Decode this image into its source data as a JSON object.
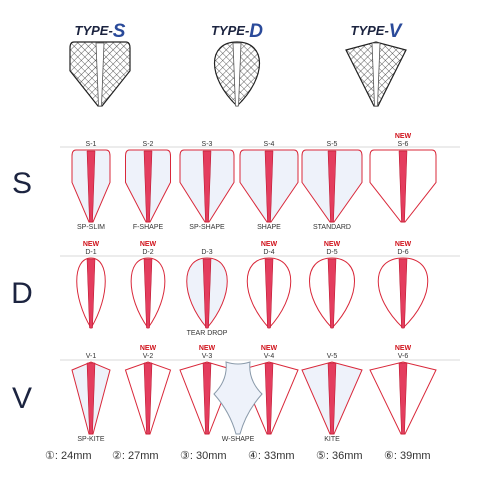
{
  "types": [
    {
      "prefix": "TYPE-",
      "letter": "S"
    },
    {
      "prefix": "TYPE-",
      "letter": "D"
    },
    {
      "prefix": "TYPE-",
      "letter": "V"
    }
  ],
  "rows": [
    {
      "letter": "S",
      "items": [
        {
          "code": "S-1",
          "name": "SP-SLIM"
        },
        {
          "code": "S-2",
          "name": "F-SHAPE"
        },
        {
          "code": "S-3",
          "name": "SP-SHAPE"
        },
        {
          "code": "S-4",
          "name": "SHAPE"
        },
        {
          "code": "S-5",
          "name": "STANDARD"
        },
        {
          "code": "S-6",
          "badge": "NEW"
        }
      ]
    },
    {
      "letter": "D",
      "items": [
        {
          "code": "D-1",
          "badge": "NEW"
        },
        {
          "code": "D-2",
          "badge": "NEW"
        },
        {
          "code": "D-3",
          "name": "TEAR DROP"
        },
        {
          "code": "D-4",
          "badge": "NEW"
        },
        {
          "code": "D-5",
          "badge": "NEW"
        },
        {
          "code": "D-6",
          "badge": "NEW"
        }
      ]
    },
    {
      "letter": "V",
      "items": [
        {
          "code": "V-1",
          "name": "SP-KITE"
        },
        {
          "code": "V-2",
          "badge": "NEW"
        },
        {
          "code": "V-3",
          "badge": "NEW"
        },
        {
          "code": "V-4",
          "badge": "NEW"
        },
        {
          "code": "V-5",
          "name": "KITE"
        },
        {
          "code": "V-6",
          "badge": "NEW"
        }
      ],
      "w_shape": {
        "name": "W-SHAPE"
      }
    }
  ],
  "sizes": [
    "①: 24mm",
    "②: 27mm",
    "③: 30mm",
    "④: 33mm",
    "⑤: 36mm",
    "⑥: 39mm"
  ]
}
